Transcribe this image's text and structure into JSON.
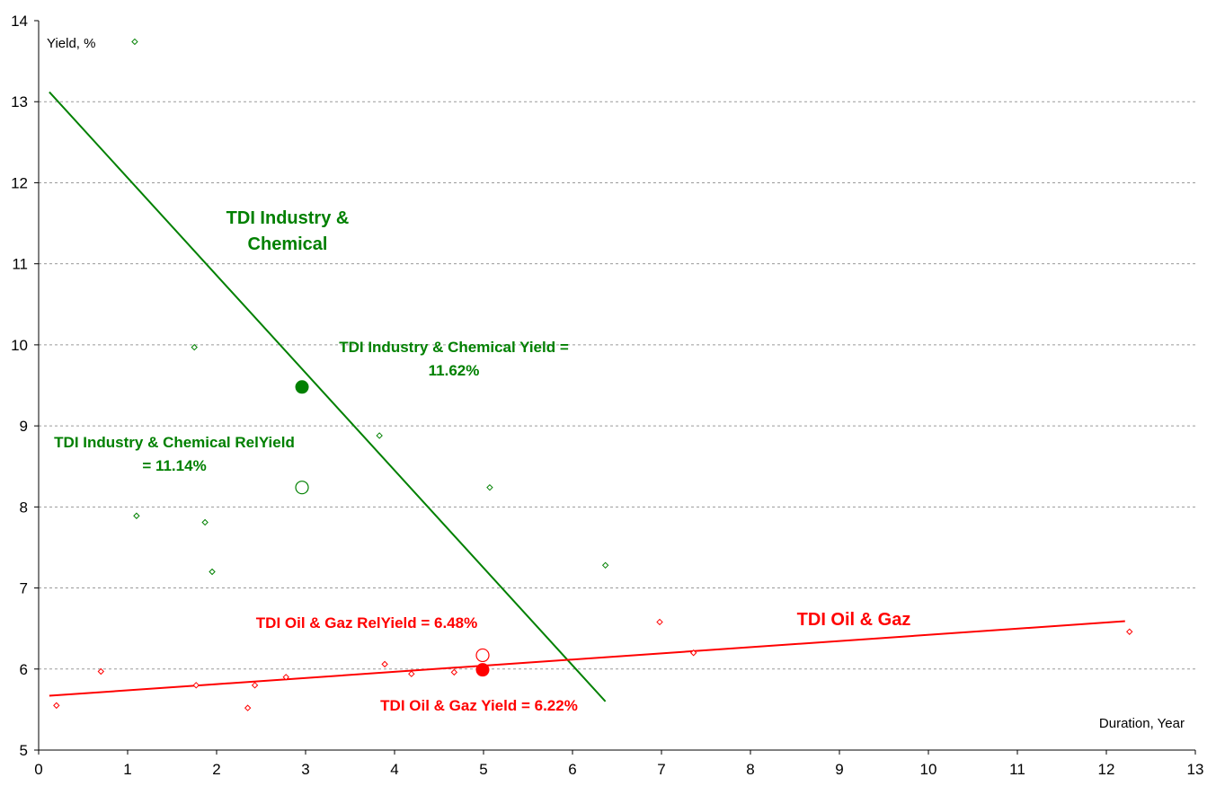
{
  "chart_data": {
    "type": "scatter",
    "xlabel": "Duration, Year",
    "ylabel": "Yield, %",
    "xlim": [
      0,
      13
    ],
    "ylim": [
      5,
      14
    ],
    "x_ticks": [
      "0",
      "1",
      "2",
      "3",
      "4",
      "5",
      "6",
      "7",
      "8",
      "9",
      "10",
      "11",
      "12",
      "13"
    ],
    "y_ticks": [
      "5",
      "6",
      "7",
      "8",
      "9",
      "10",
      "11",
      "12",
      "13",
      "14"
    ],
    "grid": "horizontal dashed",
    "series": [
      {
        "color": "#008000",
        "points": [
          [
            1.08,
            13.74
          ],
          [
            1.75,
            9.97
          ],
          [
            1.1,
            7.89
          ],
          [
            1.87,
            7.81
          ],
          [
            1.95,
            7.2
          ],
          [
            3.83,
            8.88
          ],
          [
            5.07,
            8.24
          ],
          [
            6.37,
            7.28
          ]
        ],
        "trend": [
          [
            0.12,
            13.12
          ],
          [
            6.37,
            5.6
          ]
        ],
        "highlight_yield": [
          2.96,
          9.48
        ],
        "highlight_relyield": [
          2.96,
          8.24
        ]
      },
      {
        "color": "#ff0000",
        "points": [
          [
            0.2,
            5.55
          ],
          [
            0.7,
            5.97
          ],
          [
            1.77,
            5.8
          ],
          [
            2.35,
            5.52
          ],
          [
            2.43,
            5.8
          ],
          [
            2.78,
            5.9
          ],
          [
            3.89,
            6.06
          ],
          [
            4.19,
            5.94
          ],
          [
            4.67,
            5.96
          ],
          [
            6.98,
            6.58
          ],
          [
            7.36,
            6.2
          ],
          [
            12.26,
            6.46
          ]
        ],
        "trend": [
          [
            0.12,
            5.67
          ],
          [
            12.21,
            6.59
          ]
        ],
        "highlight_yield": [
          4.99,
          5.99
        ],
        "highlight_relyield": [
          4.99,
          6.17
        ]
      }
    ],
    "annotations": {
      "tdi_ic_label_1": "TDI Industry &",
      "tdi_ic_label_2": "Chemical",
      "tdi_ic_yield_1": "TDI Industry & Chemical Yield =",
      "tdi_ic_yield_2": "11.62%",
      "tdi_ic_relyield_1": "TDI Industry & Chemical RelYield",
      "tdi_ic_relyield_2": "= 11.14%",
      "tdi_og_label": "TDI Oil & Gaz",
      "tdi_og_relyield": "TDI Oil & Gaz RelYield = 6.48%",
      "tdi_og_yield": "TDI Oil & Gaz Yield = 6.22%"
    }
  }
}
